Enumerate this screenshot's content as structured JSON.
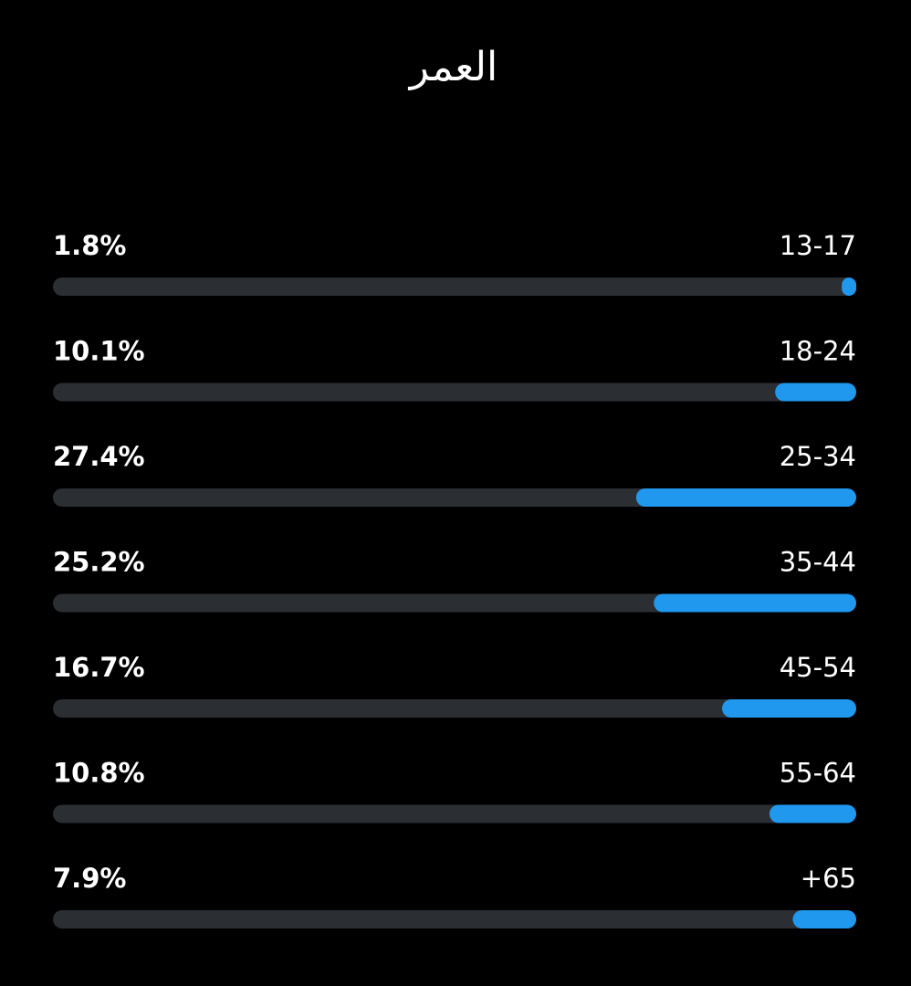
{
  "chart_data": {
    "type": "bar",
    "orientation": "horizontal",
    "direction": "rtl",
    "title": "العمر",
    "categories": [
      "13-17",
      "18-24",
      "25-34",
      "35-44",
      "45-54",
      "55-64",
      "+65"
    ],
    "values": [
      1.8,
      10.1,
      27.4,
      25.2,
      16.7,
      10.8,
      7.9
    ],
    "value_labels": [
      "1.8%",
      "10.1%",
      "27.4%",
      "25.2%",
      "16.7%",
      "10.8%",
      "7.9%"
    ],
    "color": "#1f98ee",
    "track_color": "#2b2e33",
    "xlim": [
      0,
      100
    ]
  }
}
